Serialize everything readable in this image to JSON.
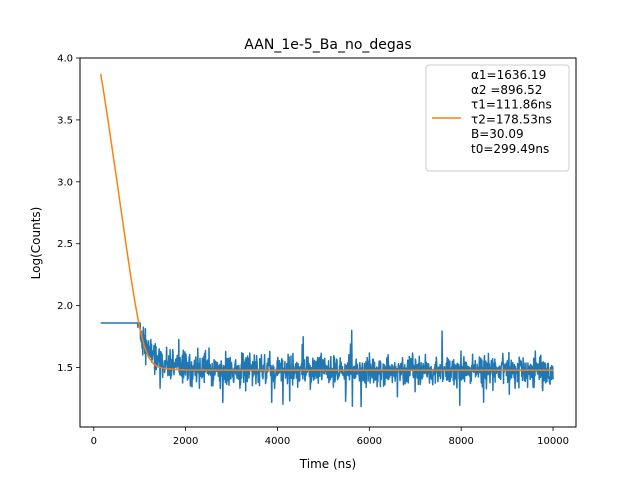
{
  "chart_data": {
    "type": "line",
    "title": "AAN_1e-5_Ba_no_degas",
    "xlabel": "Time (ns)",
    "ylabel": "Log(Counts)",
    "xlim": [
      -300,
      10500
    ],
    "ylim": [
      1.02,
      4.0
    ],
    "x_ticks": [
      0,
      2000,
      4000,
      6000,
      8000,
      10000
    ],
    "x_tick_labels": [
      "0",
      "2000",
      "4000",
      "6000",
      "8000",
      "10000"
    ],
    "y_ticks": [
      1.5,
      2.0,
      2.5,
      3.0,
      3.5,
      4.0
    ],
    "y_tick_labels": [
      "1.5",
      "2.0",
      "2.5",
      "3.0",
      "3.5",
      "4.0"
    ],
    "grid": false,
    "legend_position": "top-right",
    "legend_lines": [
      "α1=1636.19",
      "α2 =896.52",
      "τ1=111.86ns",
      "τ2=178.53ns",
      "B=30.09",
      "t0=299.49ns"
    ],
    "series": [
      {
        "kind": "measured",
        "color": "#1f77b4",
        "x_start": 150,
        "x_end": 10000,
        "anchor_points": [
          [
            150,
            3.87
          ],
          [
            300,
            3.55
          ],
          [
            500,
            3.0
          ],
          [
            700,
            2.45
          ],
          [
            900,
            2.0
          ],
          [
            1100,
            1.7
          ],
          [
            1400,
            1.55
          ],
          [
            2000,
            1.48
          ],
          [
            10000,
            1.48
          ]
        ],
        "noise_band": [
          1.15,
          1.86
        ]
      },
      {
        "kind": "fit",
        "color": "#ff7f0e",
        "x": [
          150,
          200,
          300,
          400,
          500,
          600,
          700,
          800,
          900,
          1000,
          1100,
          1200,
          1300,
          1400,
          1500,
          1600,
          1800,
          2000,
          3000,
          4000,
          6000,
          8000,
          10000
        ],
        "y": [
          3.87,
          3.76,
          3.52,
          3.27,
          3.02,
          2.76,
          2.5,
          2.25,
          2.02,
          1.82,
          1.67,
          1.58,
          1.53,
          1.505,
          1.495,
          1.49,
          1.484,
          1.48,
          1.478,
          1.478,
          1.478,
          1.478,
          1.478
        ]
      }
    ]
  }
}
